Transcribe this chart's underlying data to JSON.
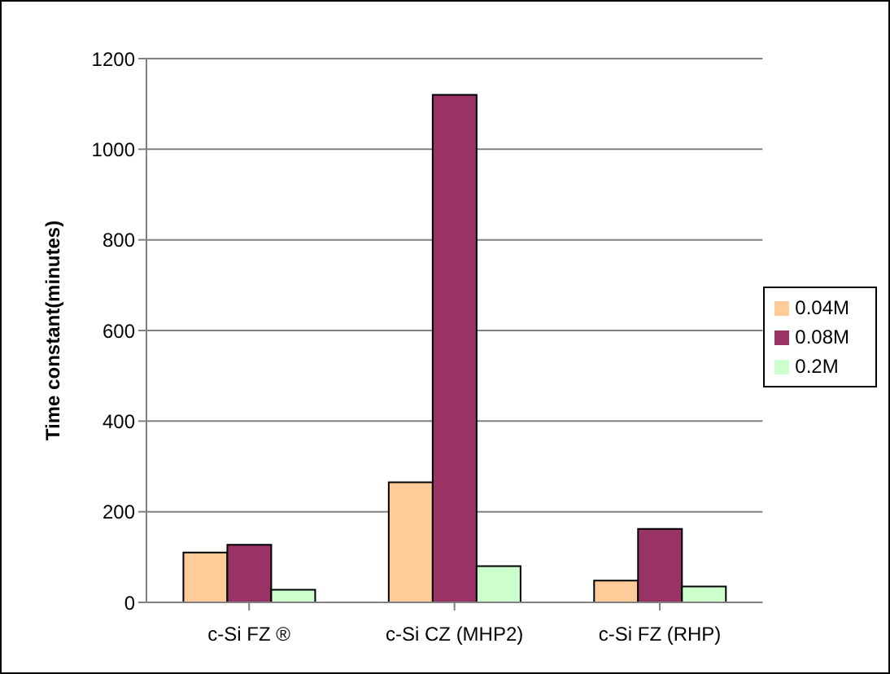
{
  "chart_data": {
    "type": "bar",
    "ylabel": "Time constant(minutes)",
    "categories": [
      "c-Si FZ ®",
      "c-Si CZ (MHP2)",
      "c-Si FZ (RHP)"
    ],
    "series": [
      {
        "name": "0.04M",
        "color": "#ffcc99",
        "values": [
          110,
          265,
          48
        ]
      },
      {
        "name": "0.08M",
        "color": "#993366",
        "values": [
          127,
          1120,
          162
        ]
      },
      {
        "name": "0.2M",
        "color": "#ccffcc",
        "values": [
          28,
          80,
          35
        ]
      }
    ],
    "ylim": [
      0,
      1200
    ],
    "yticks": [
      0,
      200,
      400,
      600,
      800,
      1000,
      1200
    ],
    "grid": "y",
    "legend": "right"
  }
}
